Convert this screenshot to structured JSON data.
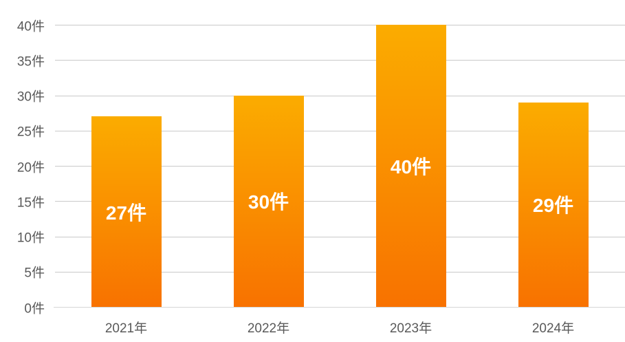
{
  "chart_data": {
    "type": "bar",
    "title": "",
    "xlabel": "",
    "ylabel": "",
    "unit": "件",
    "categories": [
      "2021年",
      "2022年",
      "2023年",
      "2024年"
    ],
    "values": [
      27,
      30,
      40,
      29
    ],
    "data_labels": [
      "27件",
      "30件",
      "40件",
      "29件"
    ],
    "y_tick_values": [
      0,
      5,
      10,
      15,
      20,
      25,
      30,
      35,
      40
    ],
    "y_tick_labels": [
      "0件",
      "5件",
      "10件",
      "15件",
      "20件",
      "25件",
      "30件",
      "35件",
      "40件"
    ],
    "ylim": [
      0,
      40
    ],
    "grid": true,
    "legend": false,
    "colors": {
      "bar_gradient_top": "#FBAC00",
      "bar_gradient_bottom": "#F87200",
      "gridline": "#C9C9C9",
      "axis_line": "#D6D6D6",
      "tick_label": "#595959",
      "data_label": "#FFFFFF",
      "background": "#FFFFFF"
    }
  }
}
